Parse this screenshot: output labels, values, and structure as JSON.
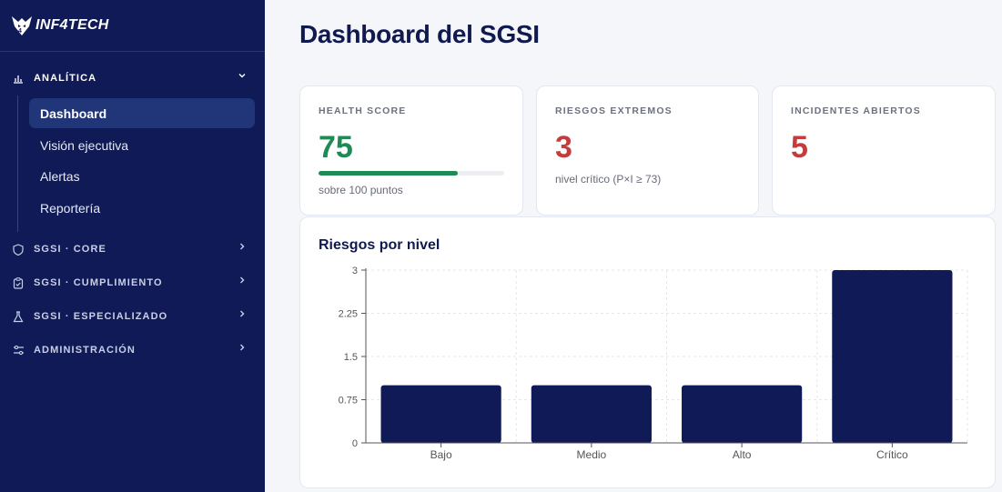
{
  "brand": {
    "name": "INF4TECH"
  },
  "sidebar": {
    "sections": [
      {
        "label": "ANALÍTICA",
        "icon": "bar-chart-icon",
        "open": true,
        "chevron": "chevron-down-icon"
      },
      {
        "label": "SGSI · CORE",
        "icon": "shield-icon",
        "open": false,
        "chevron": "chevron-right-icon"
      },
      {
        "label": "SGSI · CUMPLIMIENTO",
        "icon": "clipboard-check-icon",
        "open": false,
        "chevron": "chevron-right-icon"
      },
      {
        "label": "SGSI · ESPECIALIZADO",
        "icon": "flask-icon",
        "open": false,
        "chevron": "chevron-right-icon"
      },
      {
        "label": "ADMINISTRACIÓN",
        "icon": "sliders-icon",
        "open": false,
        "chevron": "chevron-right-icon"
      }
    ],
    "analytics_items": [
      {
        "label": "Dashboard",
        "active": true
      },
      {
        "label": "Visión ejecutiva",
        "active": false
      },
      {
        "label": "Alertas",
        "active": false
      },
      {
        "label": "Reportería",
        "active": false
      }
    ]
  },
  "page": {
    "title": "Dashboard del SGSI"
  },
  "kpis": {
    "health": {
      "label": "HEALTH SCORE",
      "value": "75",
      "progress": 0.75,
      "sub": "sobre 100 puntos",
      "color": "#1e8a55"
    },
    "extreme": {
      "label": "RIESGOS EXTREMOS",
      "value": "3",
      "sub": "nivel crítico (P×I ≥ 73)",
      "color": "#c43c3c"
    },
    "incidents": {
      "label": "INCIDENTES ABIERTOS",
      "value": "5",
      "color": "#c43c3c"
    }
  },
  "chart_data": {
    "type": "bar",
    "title": "Riesgos por nivel",
    "categories": [
      "Bajo",
      "Medio",
      "Alto",
      "Crítico"
    ],
    "values": [
      1,
      1,
      1,
      3
    ],
    "ylim": [
      0,
      3
    ],
    "yticks": [
      "0",
      "0.75",
      "1.5",
      "2.25",
      "3"
    ],
    "grid": true,
    "bar_color": "#0f1a57"
  }
}
